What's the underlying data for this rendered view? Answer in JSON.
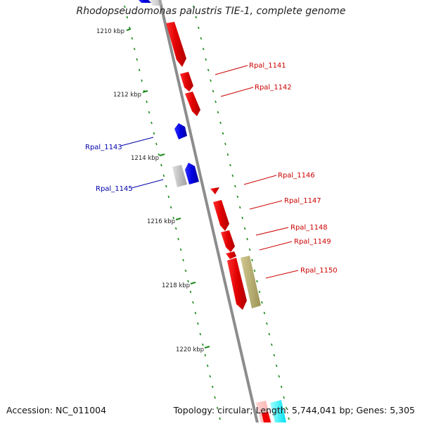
{
  "title": "Rhodopseudomonas palustris TIE-1, complete genome",
  "footer": {
    "accession": "Accession: NC_011004",
    "summary": "Topology: circular; Length: 5,744,041 bp; Genes: 5,305"
  },
  "scale_labels": [
    "1210 kbp",
    "1212 kbp",
    "1214 kbp",
    "1216 kbp",
    "1218 kbp",
    "1220 kbp"
  ],
  "gene_labels": {
    "reverse": [
      "Rpal_1143",
      "Rpal_1145"
    ],
    "forward": [
      "Rpal_1141",
      "Rpal_1142",
      "Rpal_1146",
      "Rpal_1147",
      "Rpal_1148",
      "Rpal_1149",
      "Rpal_1150"
    ]
  },
  "colors": {
    "forward_gene": "#ee0000",
    "reverse_gene": "#0000ee",
    "pseudo_gene": "#c0c0c0",
    "other_feature": "#b8b070",
    "backbone": "#8a8a8a",
    "tick": "#1a8a1a",
    "forward_label": "#cc0000",
    "reverse_label": "#0000aa"
  }
}
